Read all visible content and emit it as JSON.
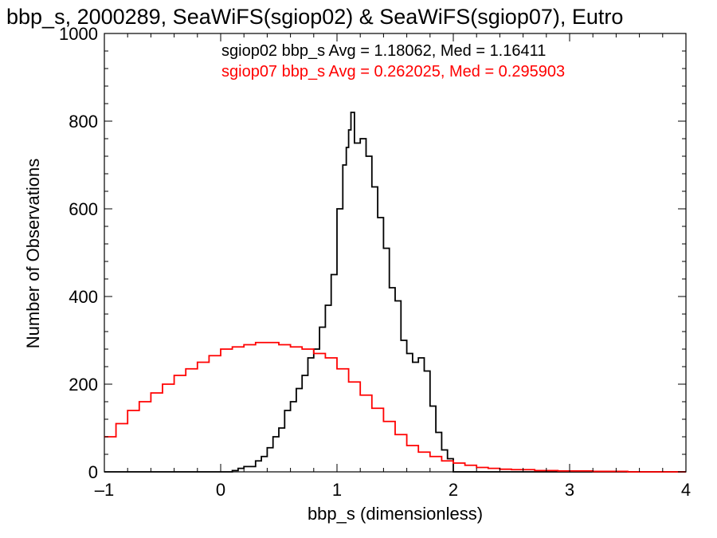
{
  "chart_data": {
    "type": "line",
    "title": "bbp_s, 2000289, SeaWiFS(sgiop02) & SeaWiFS(sgiop07), Eutro",
    "xlabel": "bbp_s (dimensionless)",
    "ylabel": "Number of Observations",
    "xlim": [
      -1,
      4
    ],
    "ylim": [
      0,
      1000
    ],
    "xticks": [
      -1,
      0,
      1,
      2,
      3,
      4
    ],
    "yticks": [
      0,
      200,
      400,
      600,
      800,
      1000
    ],
    "grid": false,
    "legend_position": "top-right",
    "annotations": [
      {
        "text": "sgiop02 bbp_s Avg = 1.18062, Med = 1.16411",
        "color": "#000000"
      },
      {
        "text": "sgiop07 bbp_s Avg = 0.262025, Med = 0.295903",
        "color": "#ff0000"
      }
    ],
    "series": [
      {
        "color": "#000000",
        "points": [
          [
            -1.0,
            0
          ],
          [
            0.0,
            0
          ],
          [
            0.1,
            3
          ],
          [
            0.15,
            8
          ],
          [
            0.2,
            12
          ],
          [
            0.3,
            25
          ],
          [
            0.35,
            35
          ],
          [
            0.4,
            55
          ],
          [
            0.45,
            80
          ],
          [
            0.5,
            100
          ],
          [
            0.55,
            140
          ],
          [
            0.6,
            160
          ],
          [
            0.65,
            190
          ],
          [
            0.7,
            220
          ],
          [
            0.75,
            260
          ],
          [
            0.8,
            280
          ],
          [
            0.85,
            330
          ],
          [
            0.9,
            380
          ],
          [
            0.95,
            450
          ],
          [
            1.0,
            600
          ],
          [
            1.05,
            700
          ],
          [
            1.08,
            740
          ],
          [
            1.1,
            780
          ],
          [
            1.12,
            820
          ],
          [
            1.15,
            750
          ],
          [
            1.2,
            760
          ],
          [
            1.25,
            720
          ],
          [
            1.3,
            650
          ],
          [
            1.35,
            580
          ],
          [
            1.4,
            510
          ],
          [
            1.45,
            420
          ],
          [
            1.5,
            390
          ],
          [
            1.55,
            300
          ],
          [
            1.6,
            270
          ],
          [
            1.65,
            250
          ],
          [
            1.7,
            260
          ],
          [
            1.75,
            230
          ],
          [
            1.8,
            150
          ],
          [
            1.85,
            90
          ],
          [
            1.9,
            50
          ],
          [
            1.95,
            30
          ],
          [
            2.0,
            0
          ],
          [
            4.0,
            0
          ]
        ]
      },
      {
        "color": "#ff0000",
        "points": [
          [
            -1.0,
            80
          ],
          [
            -0.9,
            110
          ],
          [
            -0.8,
            140
          ],
          [
            -0.7,
            160
          ],
          [
            -0.6,
            180
          ],
          [
            -0.5,
            200
          ],
          [
            -0.4,
            220
          ],
          [
            -0.3,
            235
          ],
          [
            -0.2,
            250
          ],
          [
            -0.1,
            265
          ],
          [
            0.0,
            280
          ],
          [
            0.1,
            285
          ],
          [
            0.2,
            290
          ],
          [
            0.3,
            295
          ],
          [
            0.4,
            295
          ],
          [
            0.5,
            290
          ],
          [
            0.6,
            285
          ],
          [
            0.7,
            280
          ],
          [
            0.8,
            270
          ],
          [
            0.9,
            260
          ],
          [
            1.0,
            235
          ],
          [
            1.1,
            205
          ],
          [
            1.2,
            175
          ],
          [
            1.3,
            145
          ],
          [
            1.4,
            115
          ],
          [
            1.5,
            85
          ],
          [
            1.6,
            60
          ],
          [
            1.7,
            45
          ],
          [
            1.8,
            35
          ],
          [
            1.9,
            25
          ],
          [
            2.0,
            20
          ],
          [
            2.1,
            15
          ],
          [
            2.2,
            10
          ],
          [
            2.3,
            8
          ],
          [
            2.4,
            6
          ],
          [
            2.5,
            5
          ],
          [
            2.7,
            3
          ],
          [
            2.9,
            2
          ],
          [
            3.2,
            1
          ],
          [
            3.5,
            0
          ],
          [
            4.0,
            0
          ]
        ]
      }
    ]
  }
}
